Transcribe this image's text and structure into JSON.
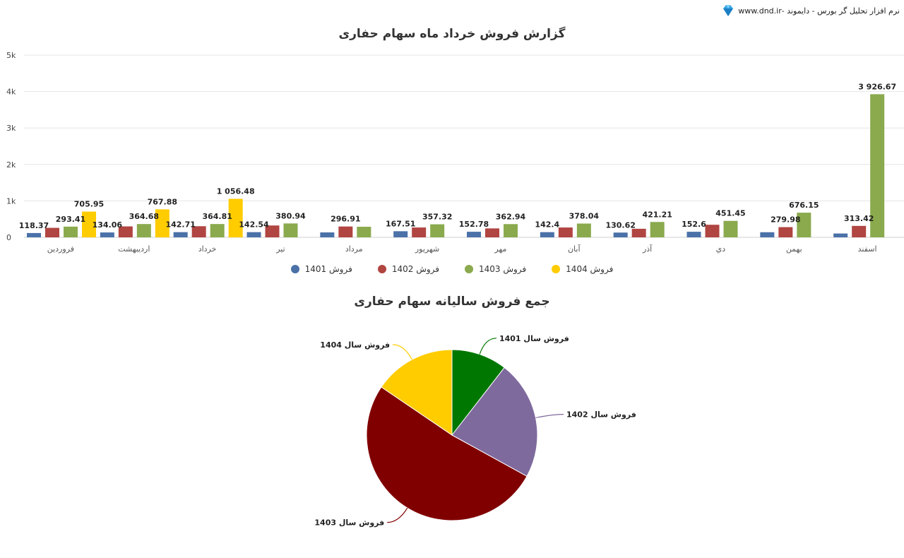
{
  "brand": {
    "text": "نرم افزار تحلیل گر بورس - دایموند -www.dnd.ir",
    "icon": "diamond-icon"
  },
  "colors": {
    "s1401": "#4a71a8",
    "s1402": "#b04541",
    "s1403": "#8aaa4d",
    "s1404": "#ffcc00",
    "pie1401": "#007700",
    "pie1402": "#7f6a9e",
    "pie1403": "#800000",
    "pie1404": "#ffcc00"
  },
  "chart_data": [
    {
      "type": "bar",
      "title": "گزارش فروش خرداد ماه سهام حفاری",
      "categories": [
        "فروردین",
        "اردیبهشت",
        "خرداد",
        "تیر",
        "مرداد",
        "شهریور",
        "مهر",
        "آبان",
        "آذر",
        "دي",
        "بهمن",
        "اسفند"
      ],
      "y_ticks": [
        "0",
        "1k",
        "2k",
        "3k",
        "4k",
        "5k"
      ],
      "ylim": [
        0,
        5000
      ],
      "grid": true,
      "legend_position": "bottom",
      "series": [
        {
          "name": "فروش 1401",
          "values": [
            118.37,
            134.06,
            142.71,
            142.54,
            135,
            167.51,
            152.78,
            142.4,
            130.62,
            152.6,
            140,
            105
          ],
          "labels": [
            "118.37",
            "134.06",
            "142.71",
            "142.54",
            "",
            "167.51",
            "152.78",
            "142.4",
            "130.62",
            "152.6",
            "",
            ""
          ]
        },
        {
          "name": "فروش 1402",
          "values": [
            260,
            300,
            305,
            325,
            296.91,
            270,
            245,
            270,
            235,
            345,
            279.98,
            313.42
          ],
          "labels": [
            "",
            "",
            "",
            "",
            "296.91",
            "",
            "",
            "",
            "",
            "",
            "279.98",
            "313.42"
          ]
        },
        {
          "name": "فروش 1403",
          "values": [
            293.41,
            364.68,
            364.81,
            380.94,
            290,
            357.32,
            362.94,
            378.04,
            421.21,
            451.45,
            676.15,
            3926.67
          ],
          "labels": [
            "293.41",
            "364.68",
            "364.81",
            "380.94",
            "",
            "357.32",
            "362.94",
            "378.04",
            "421.21",
            "451.45",
            "676.15",
            "3 926.67"
          ]
        },
        {
          "name": "فروش 1404",
          "values": [
            705.95,
            767.88,
            1056.48,
            null,
            null,
            null,
            null,
            null,
            null,
            null,
            null,
            null
          ],
          "labels": [
            "705.95",
            "767.88",
            "1 056.48",
            "",
            "",
            "",
            "",
            "",
            "",
            "",
            "",
            ""
          ]
        }
      ]
    },
    {
      "type": "pie",
      "title": "جمع فروش سالیانه سهام حفاری",
      "labels": [
        "فروش سال 1401",
        "فروش سال 1402",
        "فروش سال 1403",
        "فروش سال 1404"
      ],
      "values": [
        10.5,
        22.5,
        51.5,
        15.5
      ]
    }
  ]
}
